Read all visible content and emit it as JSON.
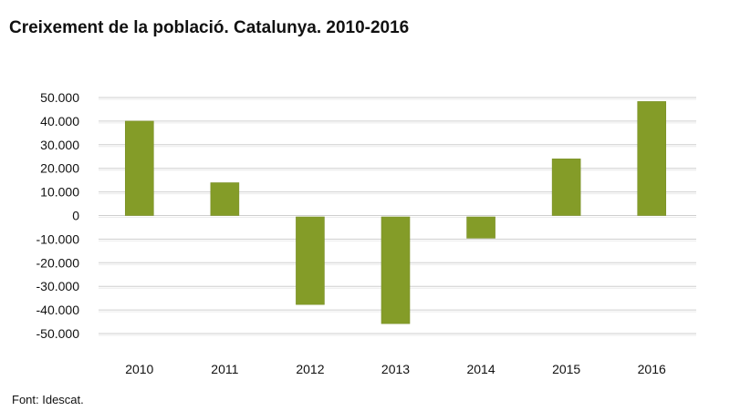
{
  "chart_data": {
    "type": "bar",
    "title": "Creixement de la població. Catalunya. 2010-2016",
    "categories": [
      "2010",
      "2011",
      "2012",
      "2013",
      "2014",
      "2015",
      "2016"
    ],
    "values": [
      40000,
      13900,
      -37700,
      -45800,
      -9600,
      24000,
      48300
    ],
    "ylim": [
      -50000,
      50000
    ],
    "yticks": [
      50000,
      40000,
      30000,
      20000,
      10000,
      0,
      -10000,
      -20000,
      -30000,
      -40000,
      -50000
    ],
    "ytick_labels": [
      "50.000",
      "40.000",
      "30.000",
      "20.000",
      "10.000",
      "0",
      "-10.000",
      "-20.000",
      "-30.000",
      "-40.000",
      "-50.000"
    ],
    "xlabel": "",
    "ylabel": "",
    "grid": true,
    "legend": "none",
    "bar_color": "#849c28",
    "source": "Font: Idescat."
  }
}
